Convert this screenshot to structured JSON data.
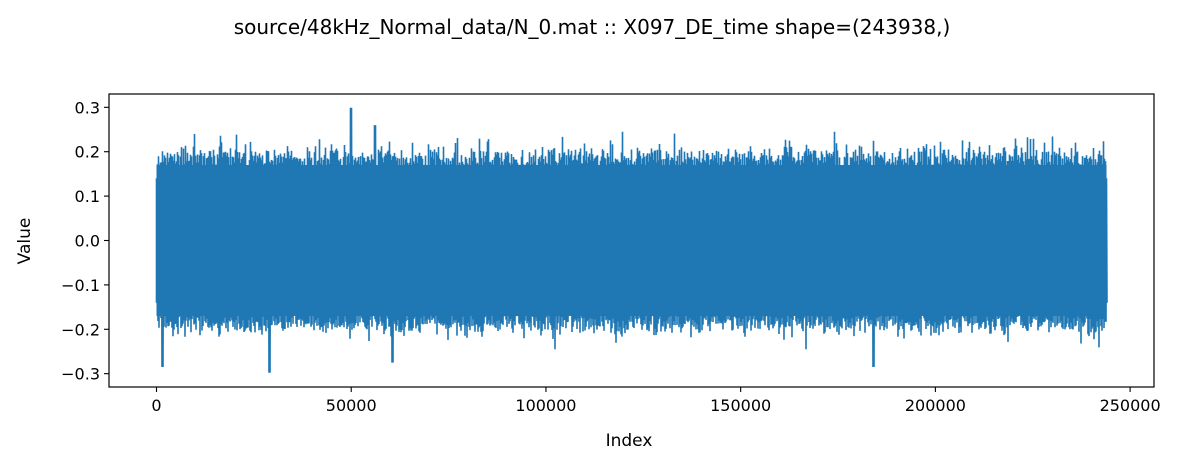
{
  "chart_data": {
    "type": "line",
    "title": "source/48kHz_Normal_data/N_0.mat :: X097_DE_time  shape=(243938,)",
    "xlabel": "Index",
    "ylabel": "Value",
    "xlim": [
      -12197,
      256135
    ],
    "ylim": [
      -0.33,
      0.33
    ],
    "x_ticks": [
      0,
      50000,
      100000,
      150000,
      200000,
      250000
    ],
    "x_tick_labels": [
      "0",
      "50000",
      "100000",
      "150000",
      "200000",
      "250000"
    ],
    "y_ticks": [
      -0.3,
      -0.2,
      -0.1,
      0.0,
      0.1,
      0.2,
      0.3
    ],
    "y_tick_labels": [
      "−0.3",
      "−0.2",
      "−0.1",
      "0.0",
      "0.1",
      "0.2",
      "0.3"
    ],
    "grid": false,
    "series": [
      {
        "color": "#1f77b4",
        "length": 243938,
        "x_range": [
          0,
          243937
        ],
        "max": 0.299,
        "min": -0.298,
        "typical_upper": 0.2,
        "typical_lower": -0.2,
        "notable_peaks": [
          {
            "x": 50000,
            "y": 0.299
          },
          {
            "x": 56000,
            "y": 0.26
          },
          {
            "x": 29000,
            "y": -0.298
          },
          {
            "x": 1500,
            "y": -0.285
          },
          {
            "x": 184000,
            "y": -0.285
          },
          {
            "x": 60500,
            "y": -0.275
          }
        ]
      }
    ]
  }
}
